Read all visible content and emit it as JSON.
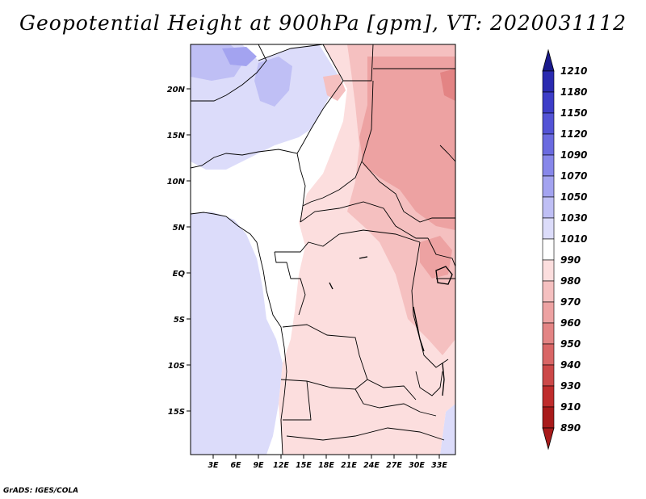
{
  "title": "Geopotential Height at 900hPa [gpm], VT: 2020031112",
  "credit": "GrADS: IGES/COLA",
  "map": {
    "lat_labels": [
      "20N",
      "15N",
      "10N",
      "5N",
      "EQ",
      "5S",
      "10S",
      "15S"
    ],
    "lon_labels": [
      "3E",
      "6E",
      "9E",
      "12E",
      "15E",
      "18E",
      "21E",
      "24E",
      "27E",
      "30E",
      "33E"
    ]
  },
  "colorbar": {
    "levels": [
      "1210",
      "1180",
      "1150",
      "1120",
      "1090",
      "1070",
      "1050",
      "1030",
      "1010",
      "990",
      "980",
      "970",
      "960",
      "950",
      "940",
      "930",
      "910",
      "890"
    ],
    "colors": [
      "#1a1a8c",
      "#2a2ab0",
      "#3d3dc8",
      "#5353d6",
      "#6b6be0",
      "#8787ea",
      "#a3a3f0",
      "#bfbff5",
      "#dcdcfa",
      "#ffffff",
      "#fcdede",
      "#f5c0c0",
      "#eda2a2",
      "#e38484",
      "#d96666",
      "#cc4848",
      "#bf2c2c",
      "#a81a1a"
    ]
  }
}
